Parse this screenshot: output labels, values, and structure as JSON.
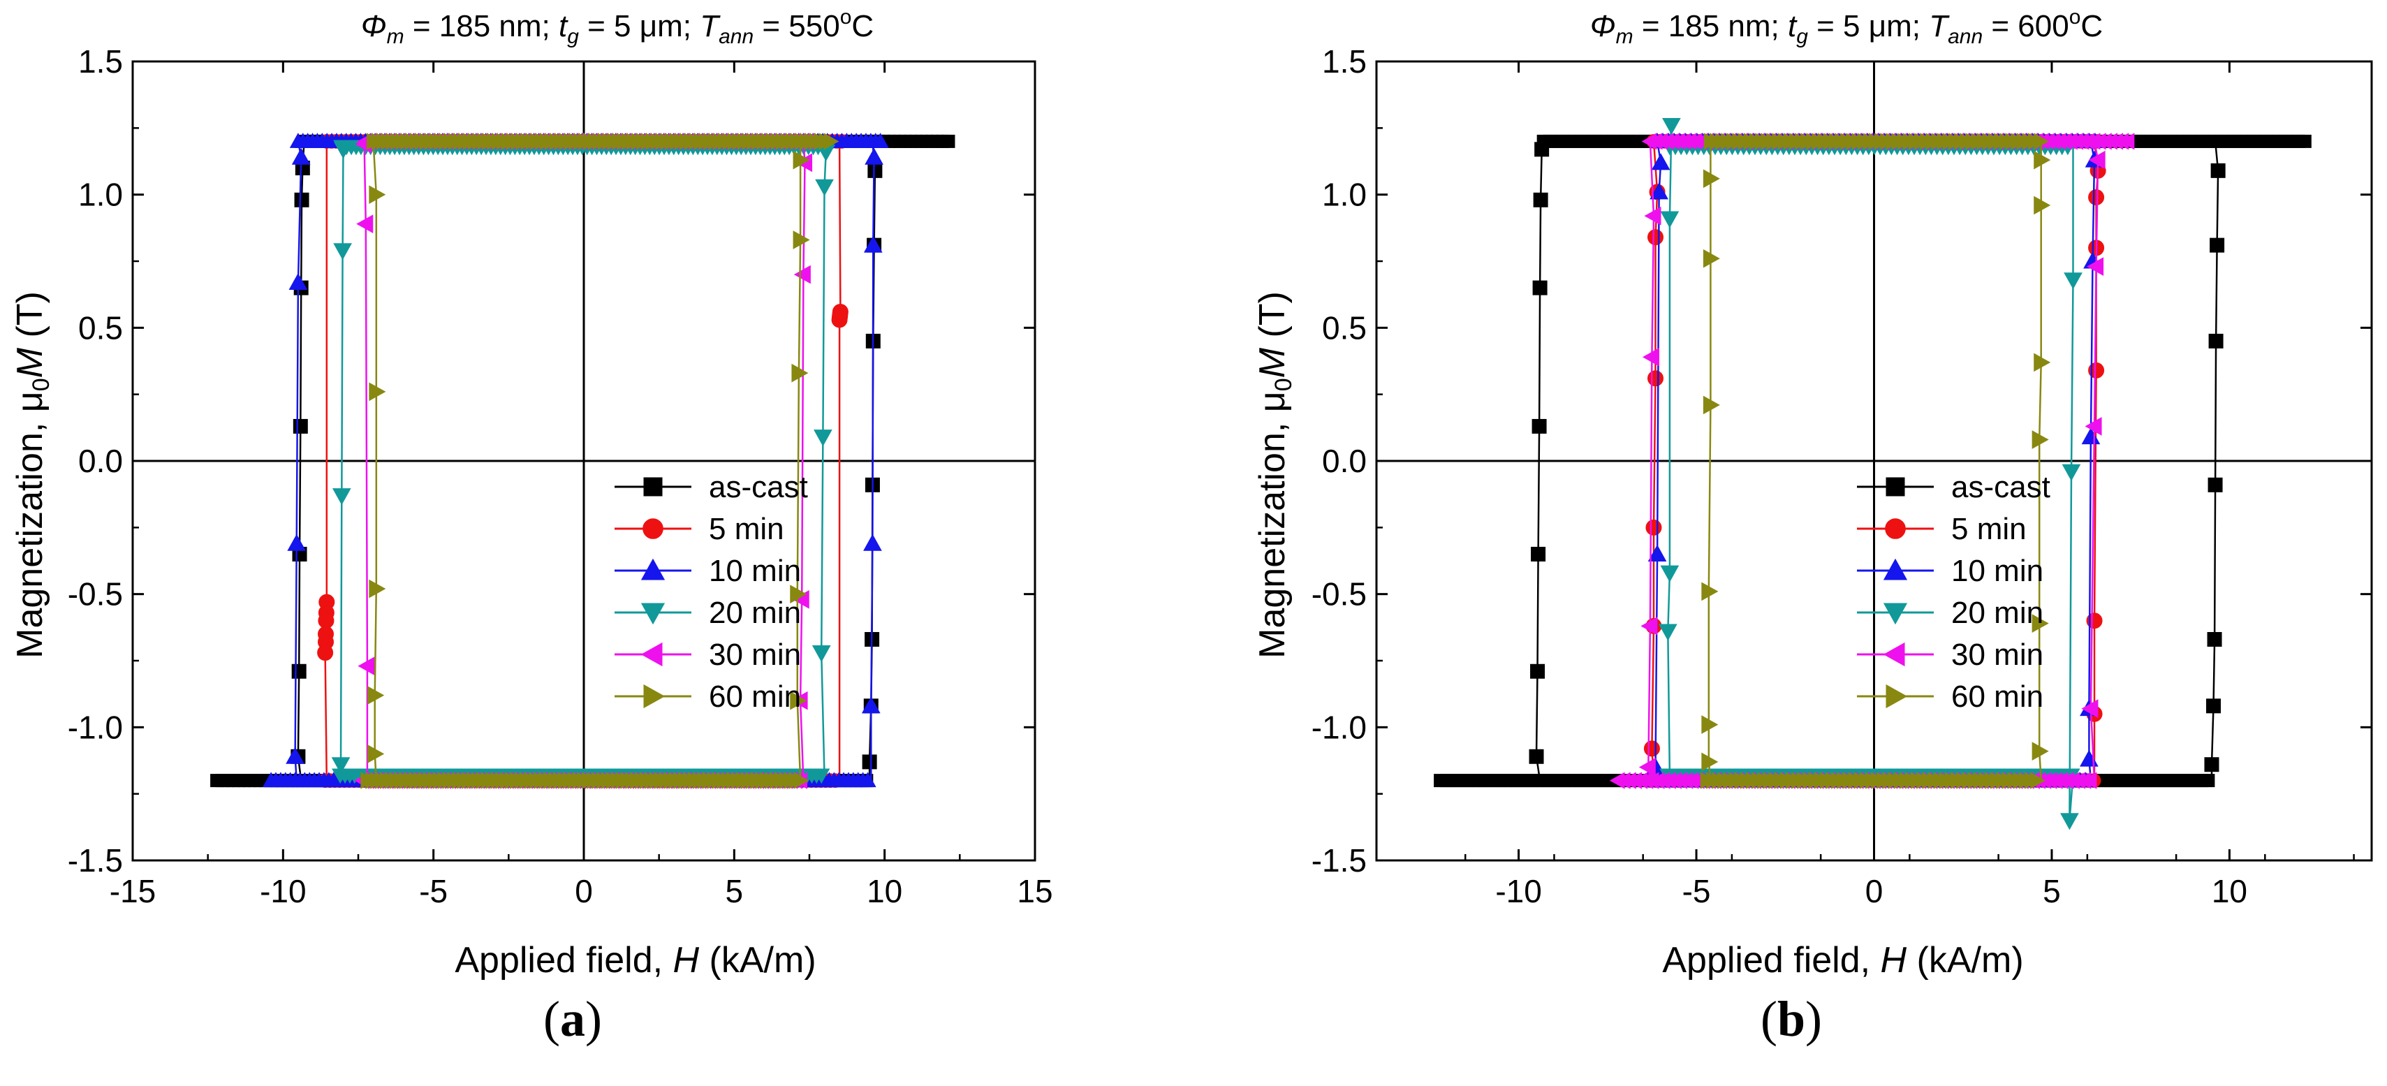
{
  "chart_data": [
    {
      "type": "line",
      "panel_label": "a",
      "title": {
        "phi": "Φ",
        "phi_sub": "m",
        "p1": " = 185 nm; ",
        "t": "t",
        "t_sub": "g",
        "p2": " = 5 μm; ",
        "T": "T",
        "T_sub": "ann",
        "p3": " = 550",
        "sup": "o",
        "p4": "C"
      },
      "xlabel": {
        "pre": "Applied field, ",
        "var": "H",
        "post": " (kA/m)"
      },
      "ylabel": {
        "pre": "Magnetization, μ",
        "sub": "0",
        "var": "M",
        "post": " (T)"
      },
      "xlim": [
        -15,
        15
      ],
      "ylim": [
        -1.5,
        1.5
      ],
      "xticks": [
        -15,
        -10,
        -5,
        0,
        5,
        10,
        15
      ],
      "xtick_labels": [
        "-15",
        "-10",
        "-5",
        "0",
        "5",
        "10",
        "15"
      ],
      "yticks": [
        -1.5,
        -1.0,
        -0.5,
        0.0,
        0.5,
        1.0,
        1.5
      ],
      "ytick_labels": [
        "-1.5",
        "-1.0",
        "-0.5",
        "0.0",
        "0.5",
        "1.0",
        "1.5"
      ],
      "series": [
        {
          "name": "as-cast",
          "color": "#000000",
          "marker": "square",
          "Ms": 1.2,
          "Hc_neg": -9.4,
          "Hc_pos": 9.6,
          "Hmin": -12.2,
          "Hmax": 12.2,
          "top_from": -9.3,
          "bot_to": 9.5,
          "branch_down": [
            [
              -9.35,
              1.1
            ],
            [
              -9.38,
              0.98
            ],
            [
              -9.4,
              0.65
            ],
            [
              -9.42,
              0.13
            ],
            [
              -9.45,
              -0.35
            ],
            [
              -9.47,
              -0.79
            ],
            [
              -9.5,
              -1.11
            ]
          ],
          "branch_up": [
            [
              9.5,
              -1.13
            ],
            [
              9.55,
              -0.92
            ],
            [
              9.58,
              -0.67
            ],
            [
              9.6,
              -0.09
            ],
            [
              9.62,
              0.45
            ],
            [
              9.65,
              0.81
            ],
            [
              9.68,
              1.09
            ]
          ]
        },
        {
          "name": "5 min",
          "color": "#ee1111",
          "marker": "circle",
          "Ms": 1.2,
          "Hc_neg": -8.55,
          "Hc_pos": 8.5,
          "Hmin": -8.6,
          "Hmax": 8.6,
          "top_from": -8.55,
          "bot_to": 8.5,
          "branch_down": [
            [
              -8.55,
              -0.53
            ],
            [
              -8.56,
              -0.57
            ],
            [
              -8.57,
              -0.6
            ],
            [
              -8.58,
              -0.65
            ],
            [
              -8.58,
              -0.68
            ],
            [
              -8.6,
              -0.72
            ]
          ],
          "branch_up": [
            [
              8.5,
              0.53
            ],
            [
              8.51,
              0.54
            ],
            [
              8.52,
              0.55
            ],
            [
              8.53,
              0.56
            ]
          ]
        },
        {
          "name": "10 min",
          "color": "#1515ee",
          "marker": "triangle-up",
          "Ms": 1.2,
          "Hc_neg": -9.55,
          "Hc_pos": 9.6,
          "Hmin": -10.4,
          "Hmax": 10.0,
          "top_from": -9.5,
          "bot_to": 9.55,
          "branch_down": [
            [
              -9.4,
              1.14
            ],
            [
              -9.5,
              0.67
            ],
            [
              -9.55,
              -0.31
            ],
            [
              -9.6,
              -1.11
            ]
          ],
          "branch_up": [
            [
              9.55,
              -0.92
            ],
            [
              9.6,
              -0.31
            ],
            [
              9.62,
              0.81
            ],
            [
              9.65,
              1.14
            ]
          ]
        },
        {
          "name": "20 min",
          "color": "#11999a",
          "marker": "triangle-down",
          "Ms": 1.18,
          "Hc_neg": -8.05,
          "Hc_pos": 8.0,
          "Hmin": -8.1,
          "Hmax": 8.2,
          "top_from": -8.05,
          "bot_to": 8.0,
          "branch_down": [
            [
              -8.0,
              1.17
            ],
            [
              -8.02,
              0.79
            ],
            [
              -8.05,
              -0.13
            ],
            [
              -8.08,
              -1.14
            ]
          ],
          "branch_up": [
            [
              7.9,
              -0.72
            ],
            [
              7.95,
              0.09
            ],
            [
              8.0,
              1.03
            ],
            [
              8.05,
              1.16
            ]
          ]
        },
        {
          "name": "30 min",
          "color": "#ee11ee",
          "marker": "triangle-left",
          "Ms": 1.2,
          "Hc_neg": -7.2,
          "Hc_pos": 7.3,
          "Hmin": -7.35,
          "Hmax": 7.6,
          "top_from": -7.25,
          "bot_to": 7.3,
          "branch_down": [
            [
              -7.3,
              1.19
            ],
            [
              -7.25,
              0.89
            ],
            [
              -7.2,
              -0.77
            ]
          ],
          "branch_up": [
            [
              7.2,
              -0.9
            ],
            [
              7.25,
              -0.52
            ],
            [
              7.3,
              0.7
            ],
            [
              7.35,
              1.12
            ]
          ]
        },
        {
          "name": "60 min",
          "color": "#888811",
          "marker": "triangle-right",
          "Ms": 1.2,
          "Hc_neg": -6.9,
          "Hc_pos": 7.2,
          "Hmin": -7.2,
          "Hmax": 8.3,
          "top_from": -7.0,
          "bot_to": 7.2,
          "branch_down": [
            [
              -6.9,
              1.0
            ],
            [
              -6.9,
              0.26
            ],
            [
              -6.9,
              -0.48
            ],
            [
              -6.95,
              -0.88
            ],
            [
              -6.95,
              -1.1
            ]
          ],
          "branch_up": [
            [
              7.1,
              -0.9
            ],
            [
              7.1,
              -0.5
            ],
            [
              7.15,
              0.33
            ],
            [
              7.2,
              0.83
            ],
            [
              7.2,
              1.13
            ]
          ]
        }
      ]
    },
    {
      "type": "line",
      "panel_label": "b",
      "title": {
        "phi": "Φ",
        "phi_sub": "m",
        "p1": " = 185 nm; ",
        "t": "t",
        "t_sub": "g",
        "p2": " = 5 μm; ",
        "T": "T",
        "T_sub": "ann",
        "p3": " = 600",
        "sup": "o",
        "p4": "C"
      },
      "xlabel": {
        "pre": "Applied field, ",
        "var": "H",
        "post": " (kA/m)"
      },
      "ylabel": {
        "pre": "Magnetization, μ",
        "sub": "0",
        "var": "M",
        "post": " (T)"
      },
      "xlim": [
        -14,
        14
      ],
      "ylim": [
        -1.5,
        1.5
      ],
      "xticks": [
        -10,
        -5,
        0,
        5,
        10
      ],
      "xtick_labels": [
        "-10",
        "-5",
        "0",
        "5",
        "10"
      ],
      "yticks": [
        -1.5,
        -1.0,
        -0.5,
        0.0,
        0.5,
        1.0,
        1.5
      ],
      "ytick_labels": [
        "-1.5",
        "-1.0",
        "-0.5",
        "0.0",
        "0.5",
        "1.0",
        "1.5"
      ],
      "series": [
        {
          "name": "as-cast",
          "color": "#000000",
          "marker": "square",
          "Ms": 1.2,
          "Hc_neg": -9.4,
          "Hc_pos": 9.6,
          "Hmin": -12.2,
          "Hmax": 12.2,
          "top_from": -9.3,
          "bot_to": 9.5,
          "branch_down": [
            [
              -9.35,
              1.17
            ],
            [
              -9.38,
              0.98
            ],
            [
              -9.4,
              0.65
            ],
            [
              -9.42,
              0.13
            ],
            [
              -9.45,
              -0.35
            ],
            [
              -9.47,
              -0.79
            ],
            [
              -9.5,
              -1.11
            ]
          ],
          "branch_up": [
            [
              9.5,
              -1.14
            ],
            [
              9.55,
              -0.92
            ],
            [
              9.58,
              -0.67
            ],
            [
              9.6,
              -0.09
            ],
            [
              9.62,
              0.45
            ],
            [
              9.65,
              0.81
            ],
            [
              9.68,
              1.09
            ]
          ]
        },
        {
          "name": "5 min",
          "color": "#ee1111",
          "marker": "circle",
          "Ms": 1.2,
          "Hc_neg": -6.2,
          "Hc_pos": 6.2,
          "Hmin": -6.3,
          "Hmax": 6.3,
          "top_from": -6.2,
          "bot_to": 6.2,
          "branch_down": [
            [
              -6.1,
              1.01
            ],
            [
              -6.15,
              0.84
            ],
            [
              -6.15,
              0.31
            ],
            [
              -6.2,
              -0.25
            ],
            [
              -6.2,
              -0.62
            ],
            [
              -6.25,
              -1.08
            ]
          ],
          "branch_up": [
            [
              6.2,
              -0.95
            ],
            [
              6.2,
              -0.6
            ],
            [
              6.25,
              0.34
            ],
            [
              6.25,
              0.8
            ],
            [
              6.25,
              0.99
            ],
            [
              6.3,
              1.09
            ]
          ]
        },
        {
          "name": "10 min",
          "color": "#1515ee",
          "marker": "triangle-up",
          "Ms": 1.2,
          "Hc_neg": -6.15,
          "Hc_pos": 6.1,
          "Hmin": -6.2,
          "Hmax": 6.3,
          "top_from": -6.1,
          "bot_to": 6.1,
          "branch_down": [
            [
              -6.0,
              1.12
            ],
            [
              -6.05,
              1.01
            ],
            [
              -6.1,
              -0.35
            ],
            [
              -6.15,
              -1.15
            ]
          ],
          "branch_up": [
            [
              6.05,
              -1.12
            ],
            [
              6.05,
              -0.93
            ],
            [
              6.1,
              0.09
            ],
            [
              6.15,
              0.75
            ],
            [
              6.2,
              1.13
            ]
          ]
        },
        {
          "name": "20 min",
          "color": "#11999a",
          "marker": "triangle-down",
          "Ms": 1.18,
          "Hc_neg": -5.75,
          "Hc_pos": 5.6,
          "Hmin": -5.8,
          "Hmax": 5.6,
          "top_from": -5.75,
          "bot_to": 5.6,
          "branch_down": [
            [
              -5.7,
              1.26
            ],
            [
              -5.75,
              0.91
            ],
            [
              -5.75,
              -0.42
            ],
            [
              -5.8,
              -0.64
            ]
          ],
          "branch_up": [
            [
              5.5,
              -1.35
            ],
            [
              5.55,
              -0.04
            ],
            [
              5.6,
              0.68
            ]
          ]
        },
        {
          "name": "30 min",
          "color": "#ee11ee",
          "marker": "triangle-left",
          "Ms": 1.2,
          "Hc_neg": -6.3,
          "Hc_pos": 6.2,
          "Hmin": -7.2,
          "Hmax": 7.2,
          "top_from": -6.3,
          "bot_to": 6.2,
          "branch_down": [
            [
              -6.2,
              0.92
            ],
            [
              -6.25,
              0.39
            ],
            [
              -6.3,
              -0.62
            ],
            [
              -6.35,
              -1.15
            ]
          ],
          "branch_up": [
            [
              6.1,
              -0.93
            ],
            [
              6.2,
              0.13
            ],
            [
              6.25,
              0.73
            ],
            [
              6.3,
              1.13
            ]
          ]
        },
        {
          "name": "60 min",
          "color": "#888811",
          "marker": "triangle-right",
          "Ms": 1.2,
          "Hc_neg": -4.6,
          "Hc_pos": 4.7,
          "Hmin": -4.7,
          "Hmax": 4.8,
          "top_from": -4.6,
          "bot_to": 4.7,
          "branch_down": [
            [
              -4.6,
              1.06
            ],
            [
              -4.6,
              0.76
            ],
            [
              -4.6,
              0.21
            ],
            [
              -4.65,
              -0.49
            ],
            [
              -4.65,
              -0.99
            ],
            [
              -4.65,
              -1.13
            ]
          ],
          "branch_up": [
            [
              4.65,
              -1.09
            ],
            [
              4.65,
              -0.61
            ],
            [
              4.65,
              0.08
            ],
            [
              4.7,
              0.37
            ],
            [
              4.7,
              0.96
            ],
            [
              4.7,
              1.13
            ]
          ]
        }
      ]
    }
  ]
}
